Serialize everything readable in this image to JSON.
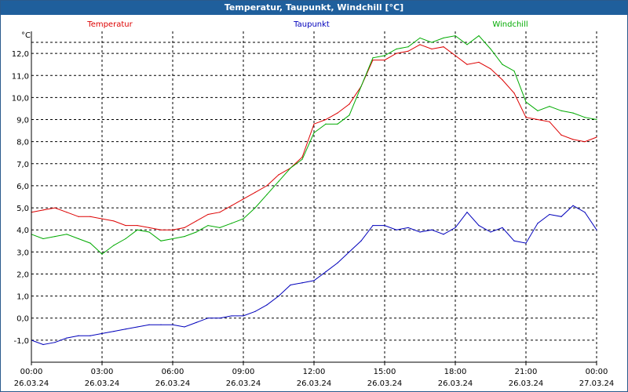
{
  "window": {
    "title": "Temperatur, Taupunkt, Windchill [°C]"
  },
  "chart_data": {
    "type": "line",
    "title": "Temperatur, Taupunkt, Windchill [°C]",
    "ylabel": "°C",
    "xlabel": "",
    "ylim": [
      -2,
      13
    ],
    "grid": true,
    "legend": "top",
    "y_ticks": [
      {
        "value": -1,
        "label": "-1,0"
      },
      {
        "value": 0,
        "label": "0,0"
      },
      {
        "value": 1,
        "label": "1,0"
      },
      {
        "value": 2,
        "label": "2,0"
      },
      {
        "value": 3,
        "label": "3,0"
      },
      {
        "value": 4,
        "label": "4,0"
      },
      {
        "value": 5,
        "label": "5,0"
      },
      {
        "value": 6,
        "label": "6,0"
      },
      {
        "value": 7,
        "label": "7,0"
      },
      {
        "value": 8,
        "label": "8,0"
      },
      {
        "value": 9,
        "label": "9,0"
      },
      {
        "value": 10,
        "label": "10,0"
      },
      {
        "value": 11,
        "label": "11,0"
      },
      {
        "value": 12,
        "label": "12,0"
      }
    ],
    "x_ticks": [
      {
        "hour": 0,
        "time": "00:00",
        "date": "26.03.24"
      },
      {
        "hour": 3,
        "time": "03:00",
        "date": "26.03.24"
      },
      {
        "hour": 6,
        "time": "06:00",
        "date": "26.03.24"
      },
      {
        "hour": 9,
        "time": "09:00",
        "date": "26.03.24"
      },
      {
        "hour": 12,
        "time": "12:00",
        "date": "26.03.24"
      },
      {
        "hour": 15,
        "time": "15:00",
        "date": "26.03.24"
      },
      {
        "hour": 18,
        "time": "18:00",
        "date": "26.03.24"
      },
      {
        "hour": 21,
        "time": "21:00",
        "date": "26.03.24"
      },
      {
        "hour": 24,
        "time": "00:00",
        "date": "27.03.24"
      }
    ],
    "series": [
      {
        "name": "Temperatur",
        "color": "#dd0000",
        "x": [
          0,
          0.5,
          1,
          1.5,
          2,
          2.5,
          3,
          3.5,
          4,
          4.5,
          5,
          5.5,
          6,
          6.5,
          7,
          7.5,
          8,
          8.5,
          9,
          9.5,
          10,
          10.5,
          11,
          11.5,
          12,
          12.5,
          13,
          13.5,
          14,
          14.5,
          15,
          15.5,
          16,
          16.5,
          17,
          17.5,
          18,
          18.5,
          19,
          19.5,
          20,
          20.5,
          21,
          21.5,
          22,
          22.5,
          23,
          23.5,
          24
        ],
        "values": [
          4.8,
          4.9,
          5.0,
          4.8,
          4.6,
          4.6,
          4.5,
          4.4,
          4.2,
          4.2,
          4.1,
          4.0,
          4.0,
          4.1,
          4.4,
          4.7,
          4.8,
          5.1,
          5.4,
          5.7,
          6.0,
          6.5,
          6.8,
          7.3,
          8.8,
          9.0,
          9.3,
          9.7,
          10.5,
          11.7,
          11.7,
          12.0,
          12.1,
          12.4,
          12.2,
          12.3,
          11.9,
          11.5,
          11.6,
          11.3,
          10.8,
          10.2,
          9.1,
          9.0,
          8.9,
          8.3,
          8.1,
          8.0,
          8.2
        ]
      },
      {
        "name": "Taupunkt",
        "color": "#0000bb",
        "x": [
          0,
          0.5,
          1,
          1.5,
          2,
          2.5,
          3,
          3.5,
          4,
          4.5,
          5,
          5.5,
          6,
          6.5,
          7,
          7.5,
          8,
          8.5,
          9,
          9.5,
          10,
          10.5,
          11,
          11.5,
          12,
          12.5,
          13,
          13.5,
          14,
          14.5,
          15,
          15.5,
          16,
          16.5,
          17,
          17.5,
          18,
          18.5,
          19,
          19.5,
          20,
          20.5,
          21,
          21.5,
          22,
          22.5,
          23,
          23.5,
          24
        ],
        "values": [
          -1.0,
          -1.2,
          -1.1,
          -0.9,
          -0.8,
          -0.8,
          -0.7,
          -0.6,
          -0.5,
          -0.4,
          -0.3,
          -0.3,
          -0.3,
          -0.4,
          -0.2,
          0.0,
          0.0,
          0.1,
          0.1,
          0.3,
          0.6,
          1.0,
          1.5,
          1.6,
          1.7,
          2.1,
          2.5,
          3.0,
          3.5,
          4.2,
          4.2,
          4.0,
          4.1,
          3.9,
          4.0,
          3.8,
          4.1,
          4.8,
          4.2,
          3.9,
          4.1,
          3.5,
          3.4,
          4.3,
          4.7,
          4.6,
          5.1,
          4.8,
          4.0
        ]
      },
      {
        "name": "Windchill",
        "color": "#00aa00",
        "x": [
          0,
          0.5,
          1,
          1.5,
          2,
          2.5,
          3,
          3.5,
          4,
          4.5,
          5,
          5.5,
          6,
          6.5,
          7,
          7.5,
          8,
          8.5,
          9,
          9.5,
          10,
          10.5,
          11,
          11.5,
          12,
          12.5,
          13,
          13.5,
          14,
          14.5,
          15,
          15.5,
          16,
          16.5,
          17,
          17.5,
          18,
          18.5,
          19,
          19.5,
          20,
          20.5,
          21,
          21.5,
          22,
          22.5,
          23,
          23.5,
          24
        ],
        "values": [
          3.8,
          3.6,
          3.7,
          3.8,
          3.6,
          3.4,
          2.9,
          3.3,
          3.6,
          4.0,
          3.9,
          3.5,
          3.6,
          3.7,
          3.9,
          4.2,
          4.1,
          4.3,
          4.5,
          5.0,
          5.6,
          6.2,
          6.8,
          7.2,
          8.4,
          8.8,
          8.8,
          9.2,
          10.5,
          11.8,
          11.9,
          12.2,
          12.3,
          12.7,
          12.5,
          12.7,
          12.8,
          12.4,
          12.8,
          12.2,
          11.5,
          11.2,
          9.8,
          9.4,
          9.6,
          9.4,
          9.3,
          9.1,
          9.0
        ]
      }
    ]
  }
}
